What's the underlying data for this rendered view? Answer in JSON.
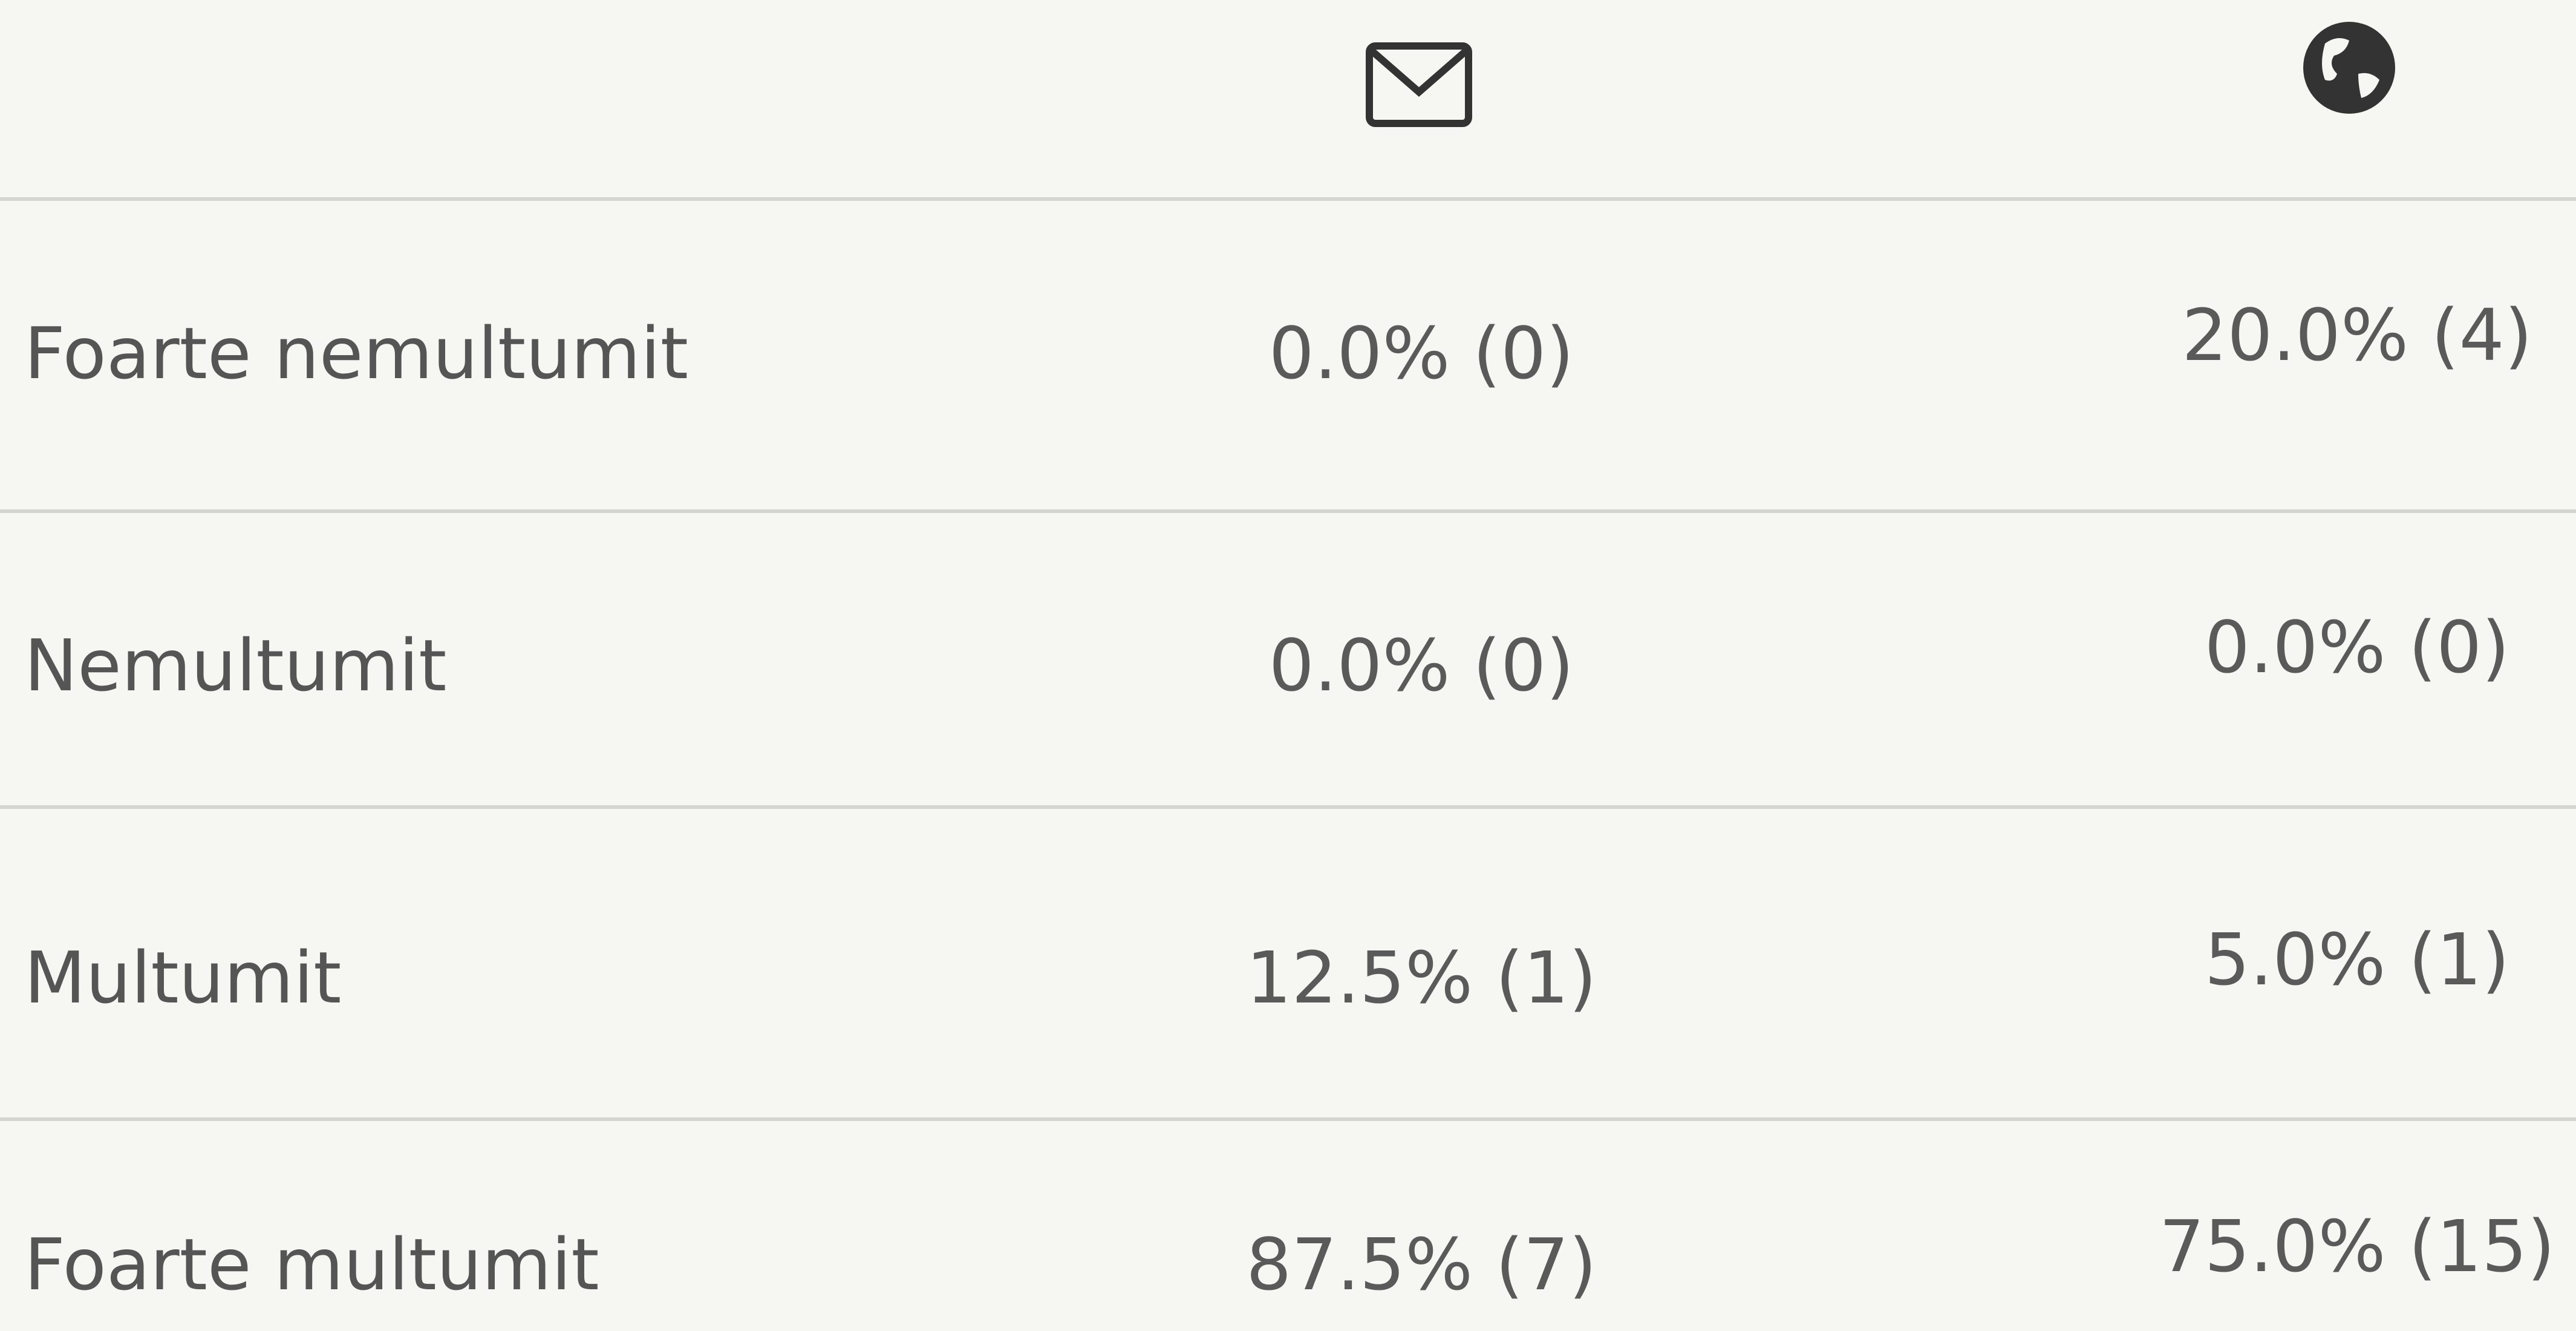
{
  "table": {
    "rows": [
      {
        "label": "Foarte nemultumit",
        "cells": [
          "0.0% (0)",
          "20.0% (4)"
        ]
      },
      {
        "label": "Nemultumit",
        "cells": [
          "0.0% (0)",
          "0.0% (0)"
        ]
      },
      {
        "label": "Multumit",
        "cells": [
          "12.5% (1)",
          "5.0% (1)"
        ]
      },
      {
        "label": "Foarte multumit",
        "cells": [
          "87.5% (7)",
          "75.0% (15)"
        ]
      }
    ]
  }
}
